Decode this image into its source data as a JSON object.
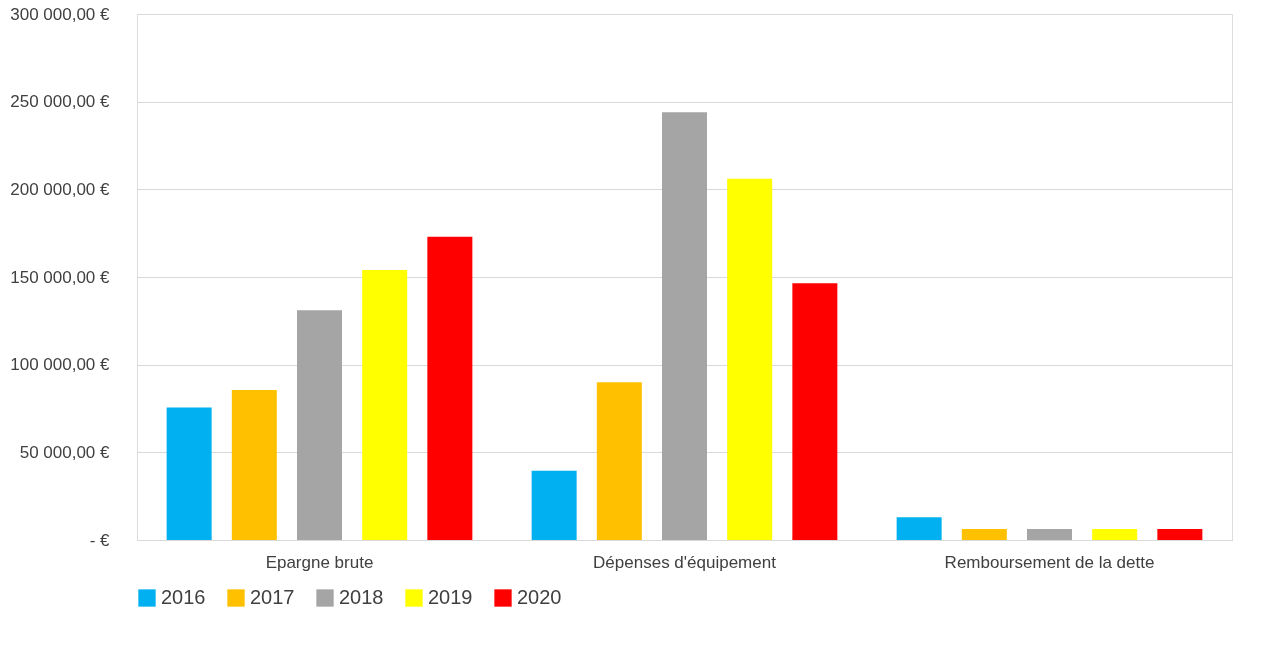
{
  "chart_data": {
    "type": "bar",
    "categories": [
      "Epargne brute",
      "Dépenses d'équipement",
      "Remboursement de la dette"
    ],
    "series": [
      {
        "name": "2016",
        "color": "#00b0f0",
        "values": [
          75500,
          39500,
          13000
        ]
      },
      {
        "name": "2017",
        "color": "#ffc000",
        "values": [
          85500,
          90000,
          6300
        ]
      },
      {
        "name": "2018",
        "color": "#a5a5a5",
        "values": [
          131000,
          244000,
          6300
        ]
      },
      {
        "name": "2019",
        "color": "#ffff00",
        "values": [
          154000,
          206000,
          6300
        ]
      },
      {
        "name": "2020",
        "color": "#ff0000",
        "values": [
          173000,
          146500,
          6300
        ]
      }
    ],
    "ylim": [
      0,
      300000
    ],
    "yticks": [
      {
        "value": 0,
        "label": "-   €"
      },
      {
        "value": 50000,
        "label": "50 000,00  €"
      },
      {
        "value": 100000,
        "label": "100 000,00  €"
      },
      {
        "value": 150000,
        "label": "150 000,00  €"
      },
      {
        "value": 200000,
        "label": "200 000,00  €"
      },
      {
        "value": 250000,
        "label": "250 000,00  €"
      },
      {
        "value": 300000,
        "label": "300 000,00  €"
      }
    ],
    "grid": "y",
    "legend": "bottom"
  }
}
